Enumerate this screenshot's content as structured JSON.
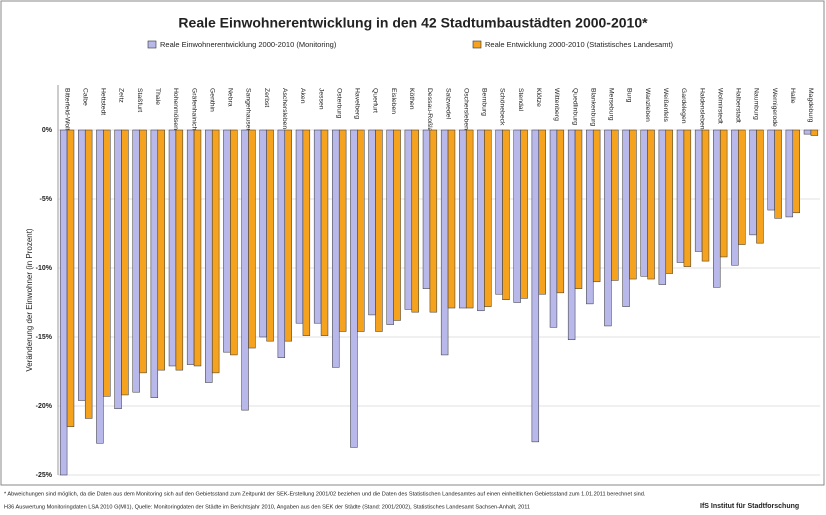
{
  "chart_data": {
    "type": "bar",
    "title": "Reale Einwohnerentwicklung in den 42 Stadtumbaustädten 2000-2010*",
    "y_label": "Veränderung der Einwohner (in Prozent)",
    "categories": [
      "Bitterfeld-Wolfen",
      "Calbe",
      "Hettstedt",
      "Zeitz",
      "Staßfurt",
      "Thale",
      "Hohenmölsen",
      "Gräfenhainichen",
      "Genthin",
      "Nebra",
      "Sangerhausen",
      "Zerbst",
      "Aschersleben",
      "Aken",
      "Jessen",
      "Osterburg",
      "Havelberg",
      "Querfurt",
      "Eisleben",
      "Köthen",
      "Dessau-Roßlau",
      "Salzwedel",
      "Oschersleben",
      "Bernburg",
      "Schönebeck",
      "Stendal",
      "Klötze",
      "Wittenberg",
      "Quedlinburg",
      "Blankenburg",
      "Merseburg",
      "Burg",
      "Wanzleben",
      "Weißenfels",
      "Gardelegen",
      "Haldensleben",
      "Wolmirstedt",
      "Halberstadt",
      "Naumburg",
      "Wernigerode",
      "Halle",
      "Magdeburg"
    ],
    "series": [
      {
        "name": "Reale Einwohnerentwicklung 2000-2010 (Monitoring)",
        "color": "#b8b8ea",
        "values": [
          -25.0,
          -19.6,
          -22.7,
          -20.2,
          -19.0,
          -19.4,
          -17.1,
          -17.0,
          -18.3,
          -16.1,
          -20.3,
          -15.0,
          -16.5,
          -14.0,
          -14.0,
          -17.2,
          -23.0,
          -13.4,
          -14.1,
          -13.0,
          -11.5,
          -16.3,
          -12.9,
          -13.1,
          -11.9,
          -12.5,
          -22.6,
          -14.3,
          -15.2,
          -12.6,
          -14.2,
          -12.8,
          -10.6,
          -11.2,
          -9.6,
          -8.8,
          -11.4,
          -9.8,
          -7.6,
          -5.8,
          -6.3,
          -0.3
        ]
      },
      {
        "name": "Reale Entwicklung 2000-2010 (Statistisches Landesamt)",
        "color": "#f5a31f",
        "values": [
          -21.5,
          -20.9,
          -19.3,
          -19.2,
          -17.6,
          -17.4,
          -17.4,
          -17.1,
          -17.6,
          -16.3,
          -15.8,
          -15.3,
          -15.3,
          -14.9,
          -14.9,
          -14.6,
          -14.6,
          -14.6,
          -13.8,
          -13.2,
          -13.2,
          -12.9,
          -12.9,
          -12.8,
          -12.3,
          -12.2,
          -11.9,
          -11.8,
          -11.5,
          -11.0,
          -10.9,
          -10.8,
          -10.8,
          -10.4,
          -9.9,
          -9.5,
          -9.2,
          -8.3,
          -8.2,
          -6.4,
          -6.0,
          -0.4
        ]
      }
    ],
    "ylim": [
      -25,
      0
    ],
    "yticks": [
      {
        "value": 0,
        "label": "0%"
      },
      {
        "value": -5,
        "label": "-5%"
      },
      {
        "value": -10,
        "label": "-10%"
      },
      {
        "value": -15,
        "label": "-15%"
      },
      {
        "value": -20,
        "label": "-20%"
      },
      {
        "value": -25,
        "label": "-25%"
      }
    ],
    "grid": true,
    "notes": [
      "* Abweichungen sind möglich, da die Daten aus dem Monitoring sich auf den Gebietsstand zum Zeitpunkt der SEK-Erstellung 2001/02 beziehen und die Daten des Statistischen Landesamtes auf einen einheitlichen Gebietsstand zum 1.01.2011 berechnet sind.",
      "H36 Auswertung Monitoringdaten LSA 2010 G(MI1), Quelle: Monitoringdaten der Städte im Berichtsjahr 2010, Angaben aus den SEK der Städte (Stand: 2001/2002), Statistisches Landesamt Sachsen-Anhalt, 2011"
    ],
    "source": "IfS Institut für Stadtforschung"
  }
}
